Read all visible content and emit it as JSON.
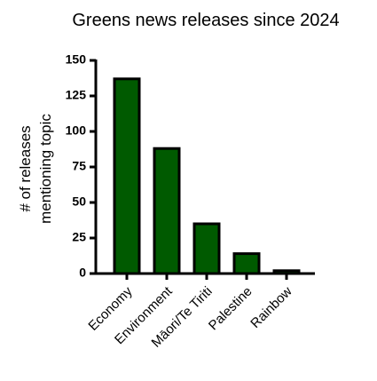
{
  "chart_data": {
    "type": "bar",
    "title": "Greens news releases since 2024",
    "ylabel": [
      "# of releases",
      "mentioning topic"
    ],
    "categories": [
      "Economy",
      "Environment",
      "Māori/Te Tiriti",
      "Palestine",
      "Rainbow"
    ],
    "values": [
      137,
      88,
      35,
      14,
      2
    ],
    "color": "#005a00",
    "ylim": [
      0,
      150
    ],
    "yticks": [
      0,
      25,
      50,
      75,
      100,
      125,
      150
    ],
    "grid": false
  }
}
